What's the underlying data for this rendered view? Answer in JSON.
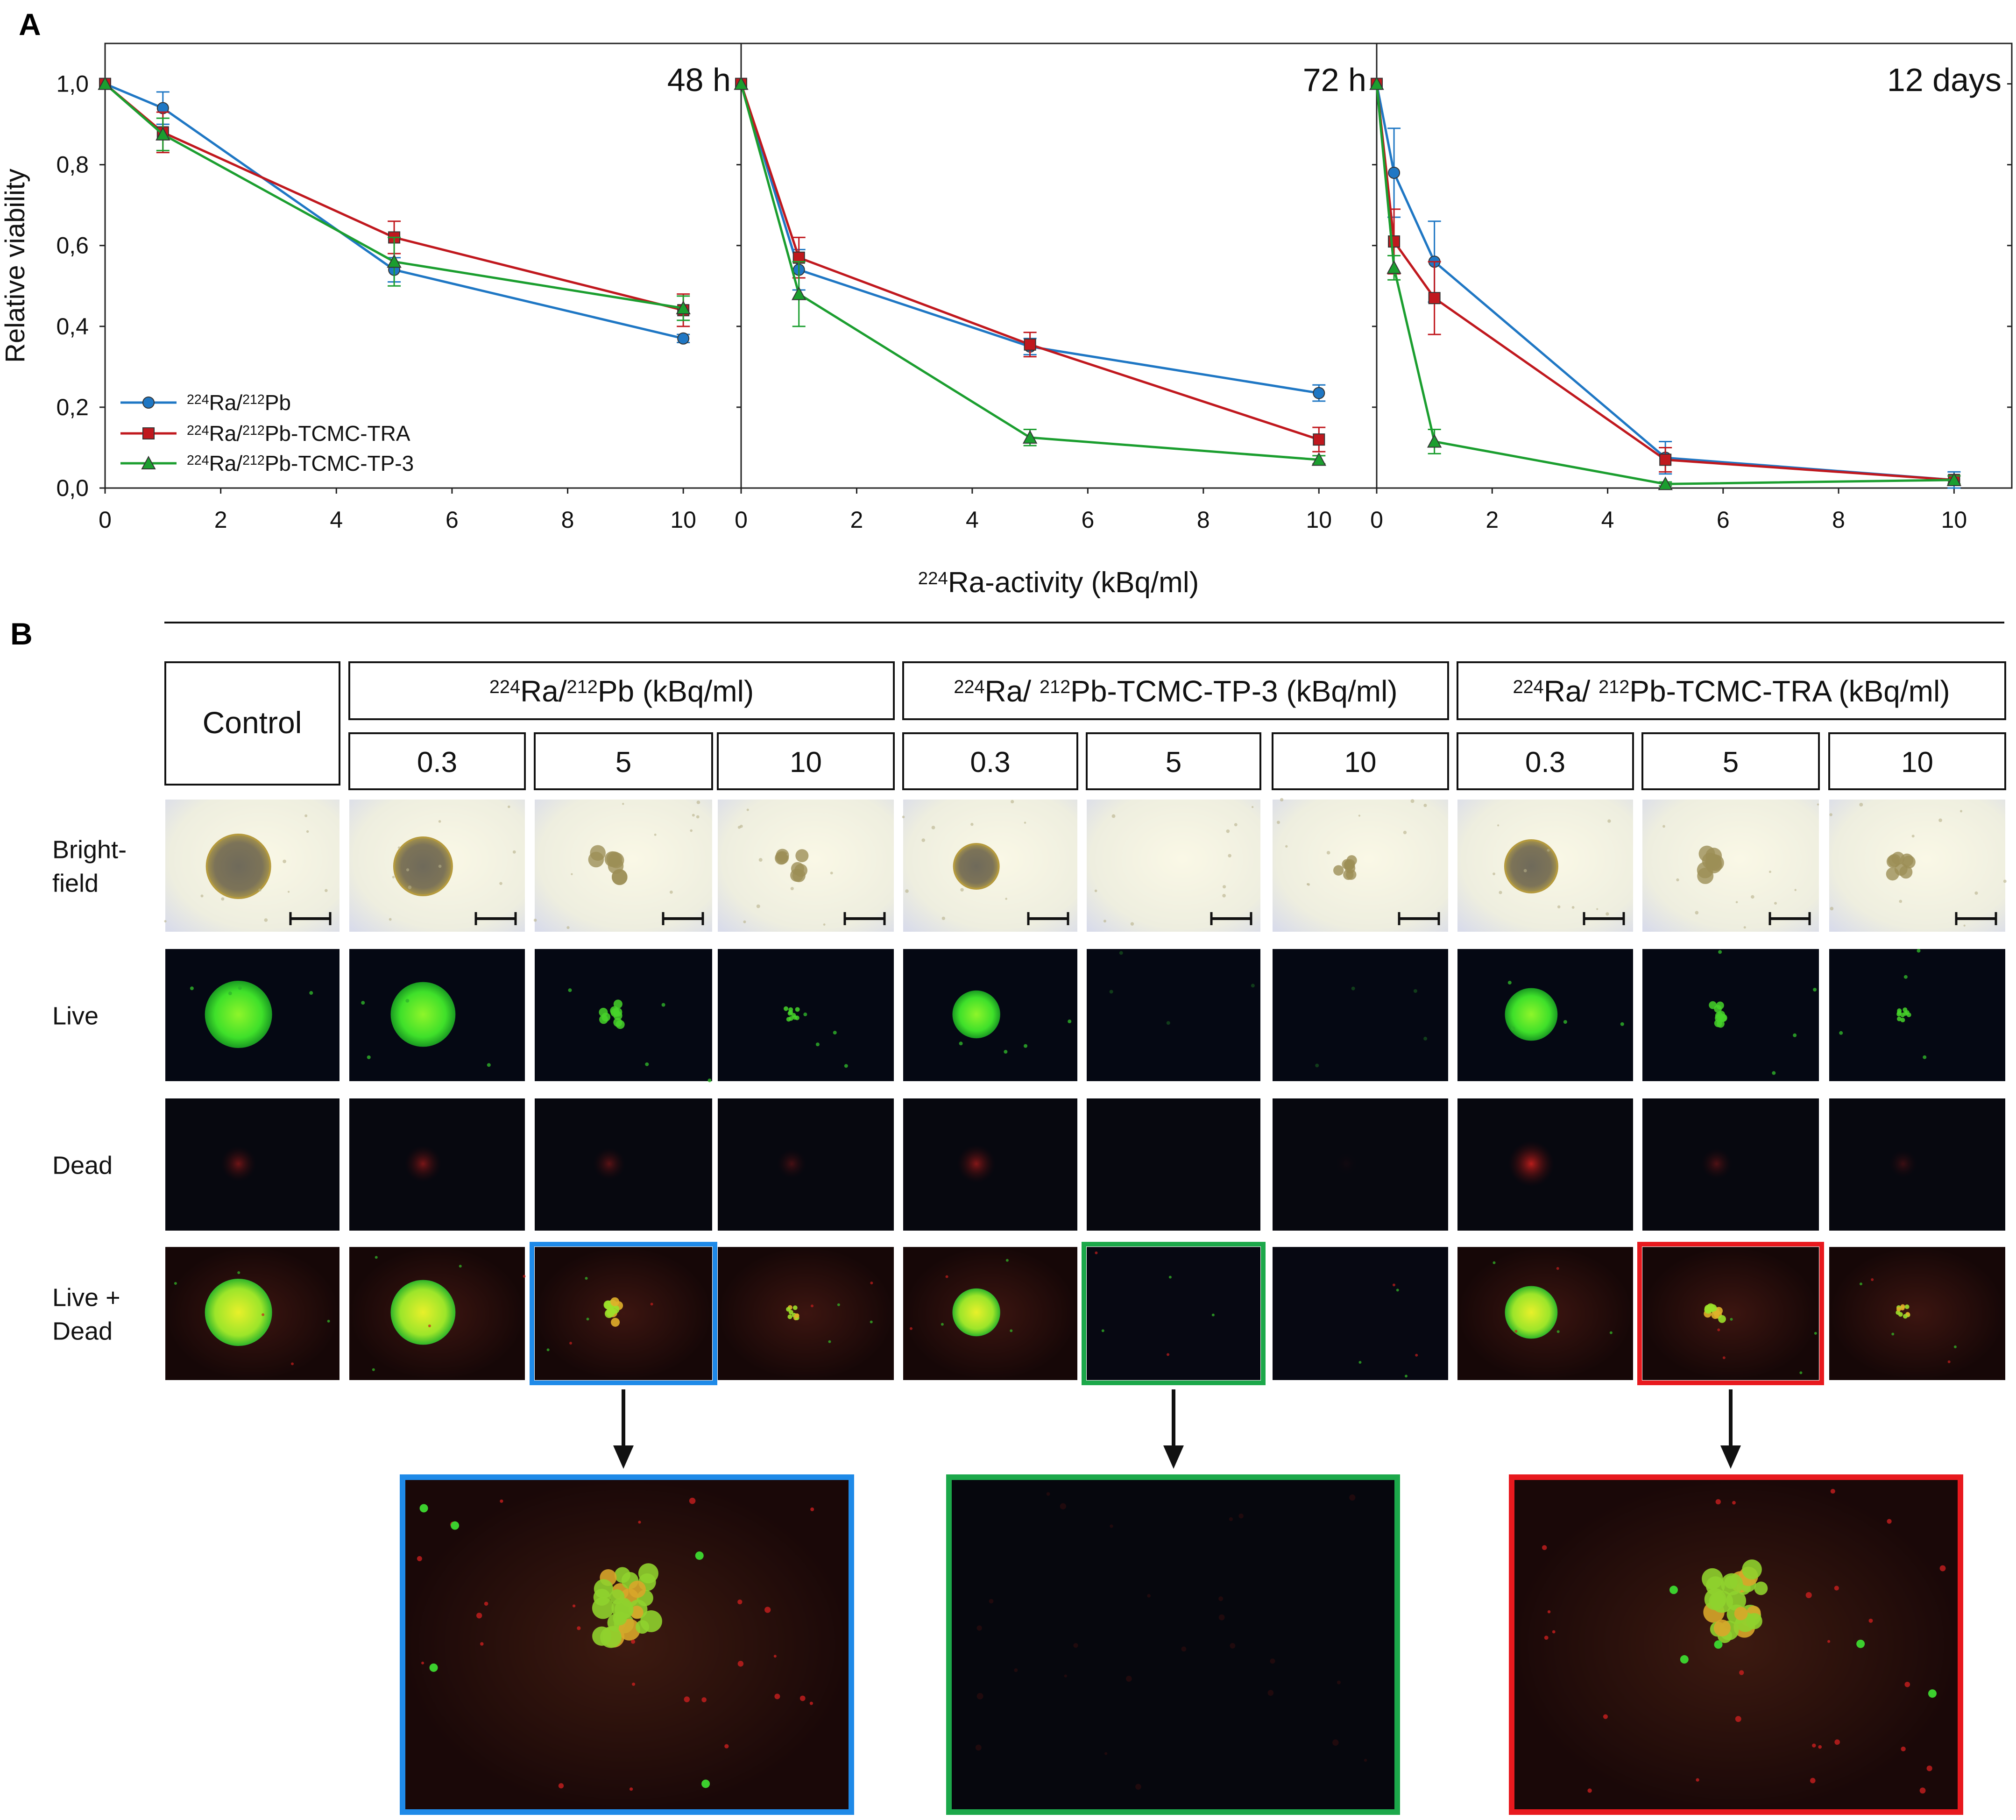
{
  "panel_labels": {
    "a": "A",
    "b": "B"
  },
  "chart_data": {
    "type": "line",
    "ylabel": "Relative viability",
    "xlabel": {
      "sup": "224",
      "text": "Ra-activity (kBq/ml)"
    },
    "ylim": [
      0,
      1.1
    ],
    "xlim": [
      0,
      11
    ],
    "yticks": [
      0,
      0.2,
      0.4,
      0.6,
      0.8,
      1.0
    ],
    "ytick_labels": [
      "0,0",
      "0,2",
      "0,4",
      "0,6",
      "0,8",
      "1,0"
    ],
    "xticks": [
      0,
      2,
      4,
      6,
      8,
      10
    ],
    "xtick_labels": [
      "0",
      "2",
      "4",
      "6",
      "8",
      "10"
    ],
    "grid": false,
    "legend_position": "bottom-left of first panel",
    "legend": [
      {
        "parts": [
          [
            "s",
            "224"
          ],
          [
            "t",
            "Ra/"
          ],
          [
            "s",
            "212"
          ],
          [
            "t",
            "Pb"
          ]
        ],
        "color": "#1f77c4",
        "marker": "circle"
      },
      {
        "parts": [
          [
            "s",
            "224"
          ],
          [
            "t",
            "Ra/"
          ],
          [
            "s",
            "212"
          ],
          [
            "t",
            "Pb-TCMC-TRA"
          ]
        ],
        "color": "#c0181e",
        "marker": "square"
      },
      {
        "parts": [
          [
            "s",
            "224"
          ],
          [
            "t",
            "Ra/"
          ],
          [
            "s",
            "212"
          ],
          [
            "t",
            "Pb-TCMC-TP-3"
          ]
        ],
        "color": "#1b9e2f",
        "marker": "triangle"
      }
    ],
    "panels": [
      {
        "title": "48 h",
        "series": [
          {
            "color": "#1f77c4",
            "marker": "circle",
            "x": [
              0,
              1,
              5,
              10
            ],
            "y": [
              1.0,
              0.94,
              0.54,
              0.37
            ],
            "err": [
              0,
              0.04,
              0.03,
              0.01
            ]
          },
          {
            "color": "#c0181e",
            "marker": "square",
            "x": [
              0,
              1,
              5,
              10
            ],
            "y": [
              1.0,
              0.88,
              0.62,
              0.44
            ],
            "err": [
              0,
              0.05,
              0.04,
              0.04
            ]
          },
          {
            "color": "#1b9e2f",
            "marker": "triangle",
            "x": [
              0,
              1,
              5,
              10
            ],
            "y": [
              1.0,
              0.875,
              0.56,
              0.445
            ],
            "err": [
              0,
              0.04,
              0.06,
              0.03
            ]
          }
        ]
      },
      {
        "title": "72 h",
        "series": [
          {
            "color": "#1f77c4",
            "marker": "circle",
            "x": [
              0,
              1,
              5,
              10
            ],
            "y": [
              1.0,
              0.54,
              0.35,
              0.235
            ],
            "err": [
              0,
              0.05,
              0.02,
              0.02
            ]
          },
          {
            "color": "#c0181e",
            "marker": "square",
            "x": [
              0,
              1,
              5,
              10
            ],
            "y": [
              1.0,
              0.57,
              0.355,
              0.12
            ],
            "err": [
              0,
              0.05,
              0.03,
              0.03
            ]
          },
          {
            "color": "#1b9e2f",
            "marker": "triangle",
            "x": [
              0,
              1,
              5,
              10
            ],
            "y": [
              1.0,
              0.48,
              0.125,
              0.07
            ],
            "err": [
              0,
              0.08,
              0.02,
              0.01
            ]
          }
        ]
      },
      {
        "title": "12 days",
        "series": [
          {
            "color": "#1f77c4",
            "marker": "circle",
            "x": [
              0,
              0.3,
              1,
              5,
              10
            ],
            "y": [
              1.0,
              0.78,
              0.56,
              0.075,
              0.02
            ],
            "err": [
              0,
              0.11,
              0.1,
              0.04,
              0.02
            ]
          },
          {
            "color": "#c0181e",
            "marker": "square",
            "x": [
              0,
              0.3,
              1,
              5,
              10
            ],
            "y": [
              1.0,
              0.61,
              0.47,
              0.07,
              0.02
            ],
            "err": [
              0,
              0.08,
              0.09,
              0.03,
              0.01
            ]
          },
          {
            "color": "#1b9e2f",
            "marker": "triangle",
            "x": [
              0,
              0.3,
              1,
              5,
              10
            ],
            "y": [
              1.0,
              0.545,
              0.115,
              0.01,
              0.02
            ],
            "err": [
              0,
              0.03,
              0.03,
              0.005,
              0.01
            ]
          }
        ]
      }
    ]
  },
  "panel_b": {
    "control_label": "Control",
    "groups": [
      {
        "parts": [
          [
            "s",
            "224"
          ],
          [
            "t",
            "Ra/"
          ],
          [
            "s",
            "212"
          ],
          [
            "t",
            "Pb (kBq/ml)"
          ]
        ],
        "doses": [
          "0.3",
          "5",
          "10"
        ]
      },
      {
        "parts": [
          [
            "s",
            "224"
          ],
          [
            "t",
            "Ra/ "
          ],
          [
            "s",
            "212"
          ],
          [
            "t",
            "Pb-TCMC-TP-3 (kBq/ml)"
          ]
        ],
        "doses": [
          "0.3",
          "5",
          "10"
        ]
      },
      {
        "parts": [
          [
            "s",
            "224"
          ],
          [
            "t",
            "Ra/ "
          ],
          [
            "s",
            "212"
          ],
          [
            "t",
            "Pb-TCMC-TRA (kBq/ml)"
          ]
        ],
        "doses": [
          "0.3",
          "5",
          "10"
        ]
      }
    ],
    "row_labels": [
      [
        "Bright-",
        "field"
      ],
      [
        "Live"
      ],
      [
        "Dead"
      ],
      [
        "Live +",
        "Dead"
      ]
    ],
    "cells": [
      {
        "bf": 1.0,
        "live": 1.0,
        "dead": 0.5,
        "clumpy": false
      },
      {
        "bf": 0.85,
        "live": 0.95,
        "dead": 0.55,
        "clumpy": false
      },
      {
        "bf": 0.5,
        "live": 0.45,
        "dead": 0.4,
        "clumpy": true
      },
      {
        "bf": 0.3,
        "live": 0.05,
        "dead": 0.3,
        "clumpy": true
      },
      {
        "bf": 0.5,
        "live": 0.6,
        "dead": 0.6,
        "clumpy": false
      },
      {
        "bf": 0.0,
        "live": 0.0,
        "dead": 0.0,
        "clumpy": true
      },
      {
        "bf": 0.1,
        "live": 0.0,
        "dead": 0.05,
        "clumpy": true
      },
      {
        "bf": 0.7,
        "live": 0.7,
        "dead": 0.85,
        "clumpy": false
      },
      {
        "bf": 0.55,
        "live": 0.35,
        "dead": 0.35,
        "clumpy": true
      },
      {
        "bf": 0.3,
        "live": 0.05,
        "dead": 0.25,
        "clumpy": true
      }
    ],
    "highlights": [
      {
        "cell": 2,
        "color": "#1f8ae8"
      },
      {
        "cell": 5,
        "color": "#1ca84a"
      },
      {
        "cell": 8,
        "color": "#e8191e"
      }
    ]
  }
}
